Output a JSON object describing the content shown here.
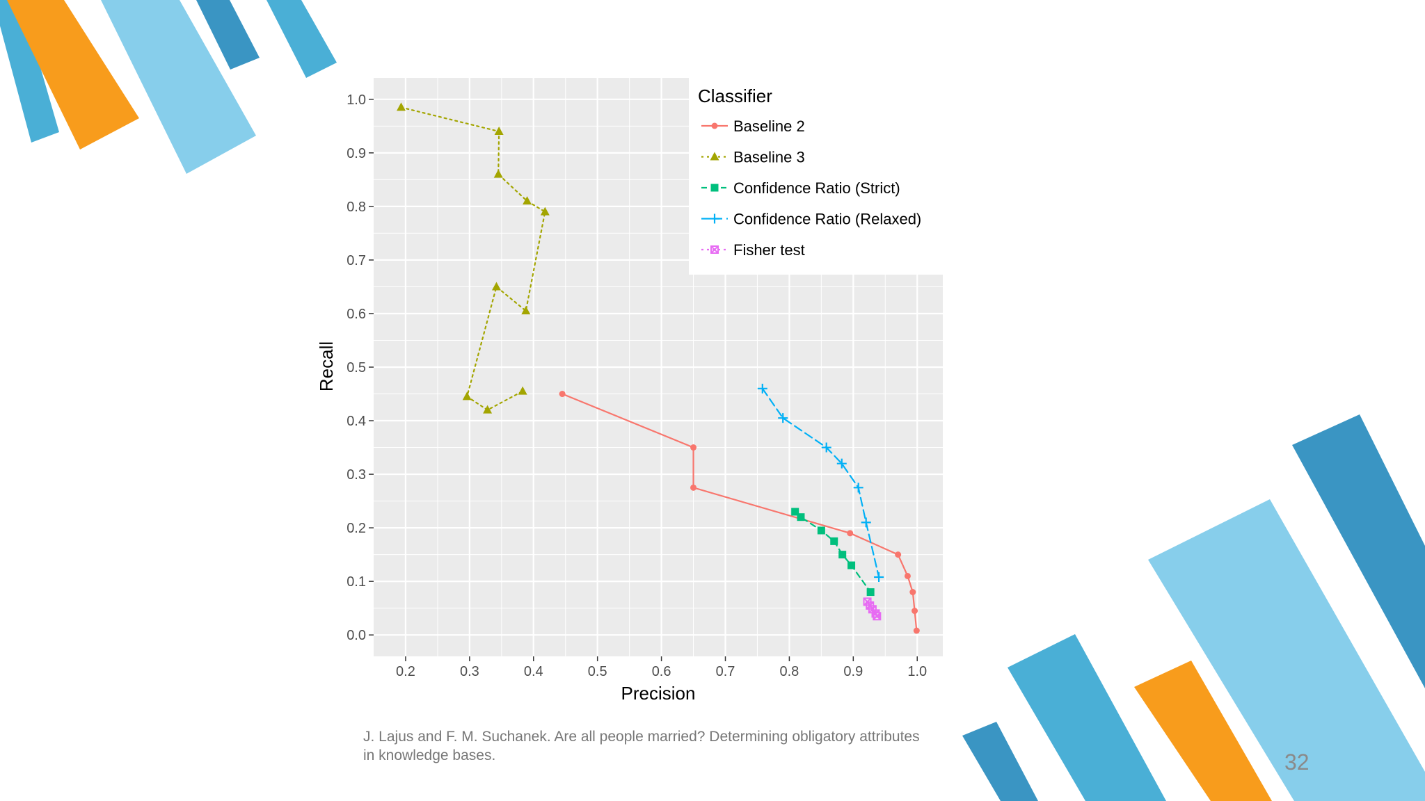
{
  "slide": {
    "caption": "J. Lajus and F. M. Suchanek. Are all people married? Determining obligatory attributes in knowledge bases.",
    "page_number": "32",
    "colors": {
      "orange": "#F89C1C",
      "light_blue": "#87CEEB",
      "mid_blue": "#4AAFD6",
      "dark_blue": "#3A95C3"
    }
  },
  "chart_data": {
    "type": "line",
    "title": "",
    "xlabel": "Precision",
    "ylabel": "Recall",
    "xlim": [
      0.15,
      1.04
    ],
    "ylim": [
      -0.04,
      1.04
    ],
    "xticks": [
      0.2,
      0.3,
      0.4,
      0.5,
      0.6,
      0.7,
      0.8,
      0.9,
      1.0
    ],
    "xtick_labels": [
      "0.2",
      "0.3",
      "0.4",
      "0.5",
      "0.6",
      "0.7",
      "0.8",
      "0.9",
      "1.0"
    ],
    "yticks": [
      0.0,
      0.1,
      0.2,
      0.3,
      0.4,
      0.5,
      0.6,
      0.7,
      0.8,
      0.9,
      1.0
    ],
    "ytick_labels": [
      "0.0",
      "0.1",
      "0.2",
      "0.3",
      "0.4",
      "0.5",
      "0.6",
      "0.7",
      "0.8",
      "0.9",
      "1.0"
    ],
    "grid": true,
    "legend_title": "Classifier",
    "legend_position": "top-right",
    "series": [
      {
        "name": "Baseline 2",
        "color": "#F8766D",
        "marker": "circle",
        "dash": "solid",
        "x": [
          0.445,
          0.65,
          0.65,
          0.895,
          0.97,
          0.985,
          0.993,
          0.996,
          0.999
        ],
        "y": [
          0.45,
          0.35,
          0.275,
          0.19,
          0.15,
          0.11,
          0.08,
          0.045,
          0.008
        ]
      },
      {
        "name": "Baseline 3",
        "color": "#A3A500",
        "marker": "triangle",
        "dash": "dotted",
        "x": [
          0.193,
          0.346,
          0.345,
          0.39,
          0.418,
          0.388,
          0.342,
          0.296,
          0.328,
          0.383
        ],
        "y": [
          0.985,
          0.94,
          0.86,
          0.81,
          0.79,
          0.605,
          0.65,
          0.445,
          0.42,
          0.455
        ]
      },
      {
        "name": "Confidence Ratio (Strict)",
        "color": "#00BF7D",
        "marker": "square",
        "dash": "dashed",
        "x": [
          0.809,
          0.818,
          0.85,
          0.87,
          0.883,
          0.897,
          0.927
        ],
        "y": [
          0.23,
          0.22,
          0.195,
          0.175,
          0.15,
          0.13,
          0.08
        ]
      },
      {
        "name": "Confidence Ratio (Relaxed)",
        "color": "#00B0F6",
        "marker": "plus",
        "dash": "longdash",
        "x": [
          0.758,
          0.79,
          0.858,
          0.882,
          0.908,
          0.92,
          0.94
        ],
        "y": [
          0.46,
          0.405,
          0.35,
          0.32,
          0.275,
          0.21,
          0.108
        ]
      },
      {
        "name": "Fisher test",
        "color": "#E76BF3",
        "marker": "boxx",
        "dash": "dotted",
        "x": [
          0.922,
          0.926,
          0.93,
          0.935,
          0.937
        ],
        "y": [
          0.062,
          0.055,
          0.048,
          0.04,
          0.035
        ]
      }
    ]
  }
}
